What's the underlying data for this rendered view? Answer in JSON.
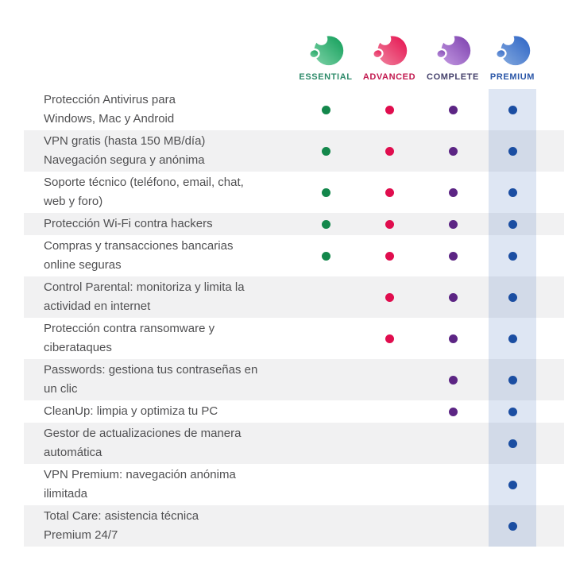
{
  "header": {
    "products": [
      {
        "name": "ESSENTIAL",
        "label_color": "#2e8b6a",
        "dot_color": "#13874b",
        "grad_light": "#7fd3a8",
        "grad_dark": "#0f9d58",
        "logo": "panda-essential-logo"
      },
      {
        "name": "ADVANCED",
        "label_color": "#c2194f",
        "dot_color": "#e00d4e",
        "grad_light": "#f0849f",
        "grad_dark": "#e5104e",
        "logo": "panda-advanced-logo"
      },
      {
        "name": "COMPLETE",
        "label_color": "#44406b",
        "dot_color": "#5c2584",
        "grad_light": "#c49ae2",
        "grad_dark": "#7b3fad",
        "logo": "panda-complete-logo"
      },
      {
        "name": "PREMIUM",
        "label_color": "#2b57a8",
        "dot_color": "#174a9f",
        "grad_light": "#85abdf",
        "grad_dark": "#2b62c4",
        "logo": "panda-premium-logo"
      }
    ]
  },
  "table": {
    "stripe_color": "#f1f1f2",
    "text_color": "#505052",
    "premium_band_color": "rgba(47, 98, 180, 0.16)",
    "included_marker": "dot",
    "features": [
      {
        "lines": [
          "Protección Antivirus para",
          "Windows, Mac y Android"
        ],
        "availability": [
          true,
          true,
          true,
          true
        ]
      },
      {
        "lines": [
          "VPN gratis (hasta 150 MB/día)",
          "Navegación segura y anónima"
        ],
        "availability": [
          true,
          true,
          true,
          true
        ]
      },
      {
        "lines": [
          "Soporte técnico (teléfono, email, chat,",
          "web y foro)"
        ],
        "availability": [
          true,
          true,
          true,
          true
        ]
      },
      {
        "lines": [
          "Protección Wi-Fi contra hackers"
        ],
        "availability": [
          true,
          true,
          true,
          true
        ]
      },
      {
        "lines": [
          "Compras y transacciones bancarias",
          "online seguras"
        ],
        "availability": [
          true,
          true,
          true,
          true
        ]
      },
      {
        "lines": [
          "Control Parental: monitoriza y limita la",
          "actividad en internet"
        ],
        "availability": [
          false,
          true,
          true,
          true
        ]
      },
      {
        "lines": [
          "Protección contra ransomware y",
          "ciberataques"
        ],
        "availability": [
          false,
          true,
          true,
          true
        ]
      },
      {
        "lines": [
          "Passwords: gestiona tus contraseñas en",
          "un clic"
        ],
        "availability": [
          false,
          false,
          true,
          true
        ]
      },
      {
        "lines": [
          "CleanUp: limpia y optimiza tu PC"
        ],
        "availability": [
          false,
          false,
          true,
          true
        ]
      },
      {
        "lines": [
          "Gestor de actualizaciones de manera",
          "automática"
        ],
        "availability": [
          false,
          false,
          false,
          true
        ]
      },
      {
        "lines": [
          "VPN Premium: navegación anónima",
          "ilimitada"
        ],
        "availability": [
          false,
          false,
          false,
          true
        ]
      },
      {
        "lines": [
          "Total Care: asistencia técnica",
          "Premium 24/7"
        ],
        "availability": [
          false,
          false,
          false,
          true
        ]
      }
    ]
  }
}
